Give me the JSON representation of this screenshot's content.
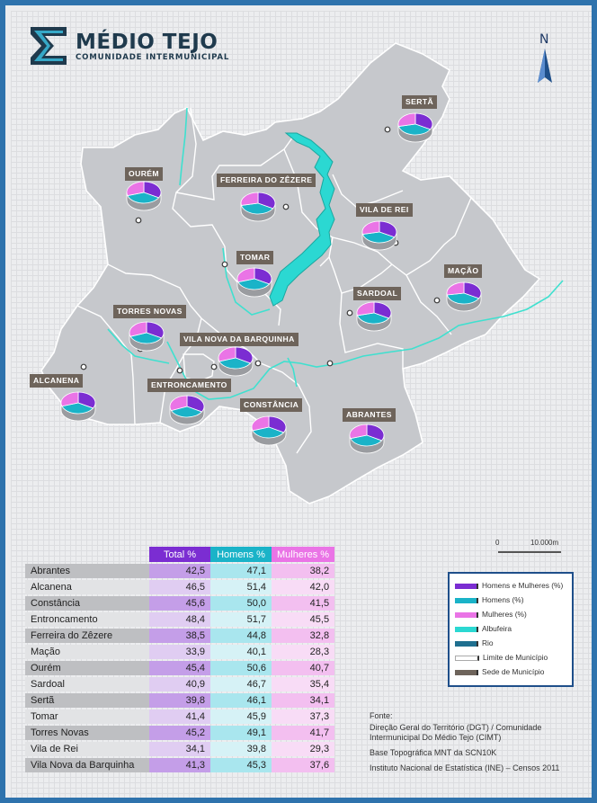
{
  "header": {
    "title": "MÉDIO TEJO",
    "subtitle": "COMUNIDADE INTERMUNICIPAL",
    "north_label": "N"
  },
  "colors": {
    "total": "#7b2dd2",
    "homens": "#1ab3c8",
    "mulheres": "#ea74e6",
    "albufeira": "#2bd8d2",
    "frame": "#2f73ad",
    "sede": "#6e645b"
  },
  "map_labels": {
    "serta": "SERTÃ",
    "ourem": "OURÉM",
    "ferreira": "FERREIRA DO ZÊZERE",
    "vila_de_rei": "VILA DE REI",
    "tomar": "TOMAR",
    "macao": "MAÇÃO",
    "sardoal": "SARDOAL",
    "torres_novas": "TORRES NOVAS",
    "vila_nova": "VILA NOVA DA BARQUINHA",
    "alcanena": "ALCANENA",
    "entroncamento": "ENTRONCAMENTO",
    "constancia": "CONSTÂNCIA",
    "abrantes": "ABRANTES"
  },
  "scale": {
    "start": "0",
    "end": "10.000m"
  },
  "table": {
    "headers": {
      "total": "Total %",
      "homens": "Homens %",
      "mulheres": "Mulheres %"
    },
    "rows": [
      {
        "municipio": "Abrantes",
        "total": "42,5",
        "homens": "47,1",
        "mulheres": "38,2"
      },
      {
        "municipio": "Alcanena",
        "total": "46,5",
        "homens": "51,4",
        "mulheres": "42,0"
      },
      {
        "municipio": "Constância",
        "total": "45,6",
        "homens": "50,0",
        "mulheres": "41,5"
      },
      {
        "municipio": "Entroncamento",
        "total": "48,4",
        "homens": "51,7",
        "mulheres": "45,5"
      },
      {
        "municipio": "Ferreira do Zêzere",
        "total": "38,5",
        "homens": "44,8",
        "mulheres": "32,8"
      },
      {
        "municipio": "Mação",
        "total": "33,9",
        "homens": "40,1",
        "mulheres": "28,3"
      },
      {
        "municipio": "Ourém",
        "total": "45,4",
        "homens": "50,6",
        "mulheres": "40,7"
      },
      {
        "municipio": "Sardoal",
        "total": "40,9",
        "homens": "46,7",
        "mulheres": "35,4"
      },
      {
        "municipio": "Sertã",
        "total": "39,8",
        "homens": "46,1",
        "mulheres": "34,1"
      },
      {
        "municipio": "Tomar",
        "total": "41,4",
        "homens": "45,9",
        "mulheres": "37,3"
      },
      {
        "municipio": "Torres Novas",
        "total": "45,2",
        "homens": "49,1",
        "mulheres": "41,7"
      },
      {
        "municipio": "Vila de Rei",
        "total": "34,1",
        "homens": "39,8",
        "mulheres": "29,3"
      },
      {
        "municipio": "Vila Nova da Barquinha",
        "total": "41,3",
        "homens": "45,3",
        "mulheres": "37,6"
      }
    ]
  },
  "legend": {
    "items": [
      "Homens e Mulheres (%)",
      "Homens (%)",
      "Mulheres (%)",
      "Albufeira",
      "Rio",
      "Limite de Município",
      "Sede de Município"
    ]
  },
  "sources": {
    "label": "Fonte:",
    "line1": "Direção Geral do Território (DGT) / Comunidade",
    "line2": "Intermunicipal Do Médio Tejo (CIMT)",
    "line3": "Base Topográfica MNT da SCN10K",
    "line4": "Instituto Nacional de Estatística (INE) – Censos 2011"
  }
}
